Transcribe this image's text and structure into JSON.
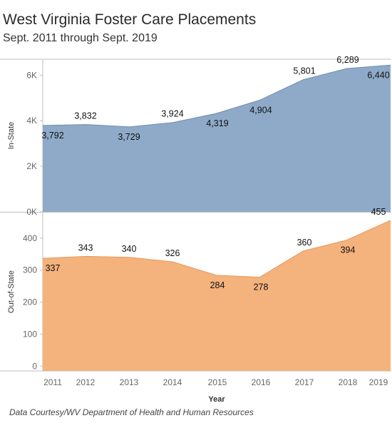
{
  "title": "West Virginia Foster Care Placements",
  "subtitle": "Sept. 2011 through Sept. 2019",
  "footer": "Data Courtesy/WV Department of Health and Human Resources",
  "colors": {
    "in_state": "#8eaac8",
    "in_state_line": "#6f8db0",
    "out_state": "#f4b27d",
    "out_state_line": "#e8995c",
    "frame": "#bfbfbf"
  },
  "chart_data": [
    {
      "type": "area",
      "ylabel": "In-State",
      "x": [
        "2011",
        "2012",
        "2013",
        "2014",
        "2015",
        "2016",
        "2017",
        "2018",
        "2019"
      ],
      "values": [
        3792,
        3832,
        3729,
        3924,
        4319,
        4904,
        5801,
        6289,
        6440
      ],
      "data_labels": [
        "3,792",
        "3,832",
        "3,729",
        "3,924",
        "4,319",
        "4,904",
        "5,801",
        "6,289",
        "6,440"
      ],
      "ylim": [
        0,
        6700
      ],
      "yticks": [
        0,
        2000,
        4000,
        6000
      ],
      "ytick_labels": [
        "0K",
        "2K",
        "4K",
        "6K"
      ]
    },
    {
      "type": "area",
      "ylabel": "Out-of-State",
      "xlabel": "Year",
      "x": [
        "2011",
        "2012",
        "2013",
        "2014",
        "2015",
        "2016",
        "2017",
        "2018",
        "2019"
      ],
      "values": [
        337,
        343,
        340,
        326,
        284,
        278,
        360,
        394,
        455
      ],
      "data_labels": [
        "337",
        "343",
        "340",
        "326",
        "284",
        "278",
        "360",
        "394",
        "455"
      ],
      "ylim": [
        -15,
        480
      ],
      "yticks": [
        0,
        100,
        200,
        300,
        400
      ],
      "ytick_labels": [
        "0",
        "100",
        "200",
        "300",
        "400"
      ]
    }
  ]
}
